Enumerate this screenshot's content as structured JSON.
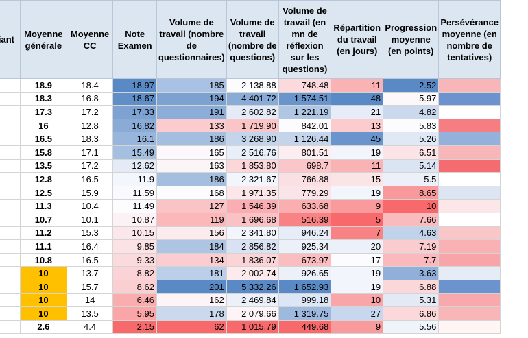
{
  "table": {
    "headers": [
      "Étudiant",
      "Moyenne générale",
      "Moyenne CC",
      "Note Examen",
      "Volume de travail (nombre de questionnaires)",
      "Volume de travail (nombre de questions)",
      "Volume de travail (en mn de réflexion sur les questions)",
      "Répartition du travail (en jours)",
      "Progression moyenne (en points)",
      "Persévérance moyenne (en nombre de tentatives)"
    ],
    "rows": [
      {
        "avg": "18.9",
        "cc": "18.4",
        "exam": "18.97",
        "quest": "185",
        "nq": "2 138.88",
        "mn": "748.48",
        "days": "11",
        "prog": "2.52"
      },
      {
        "avg": "18.3",
        "cc": "16.8",
        "exam": "18.67",
        "quest": "194",
        "nq": "4 401.72",
        "mn": "1 574.51",
        "days": "48",
        "prog": "5.97"
      },
      {
        "avg": "17.3",
        "cc": "17.2",
        "exam": "17.33",
        "quest": "191",
        "nq": "2 602.82",
        "mn": "1 221.19",
        "days": "21",
        "prog": "4.82"
      },
      {
        "avg": "16",
        "cc": "12.8",
        "exam": "16.82",
        "quest": "133",
        "nq": "1 719.90",
        "mn": "842.01",
        "days": "13",
        "prog": "5.83"
      },
      {
        "avg": "16.5",
        "cc": "18.3",
        "exam": "16.1",
        "quest": "186",
        "nq": "3 268.90",
        "mn": "1 126.44",
        "days": "45",
        "prog": "5.26"
      },
      {
        "avg": "15.8",
        "cc": "17.1",
        "exam": "15.49",
        "quest": "165",
        "nq": "2 516.76",
        "mn": "801.51",
        "days": "19",
        "prog": "6.51"
      },
      {
        "avg": "13.5",
        "cc": "17.2",
        "exam": "12.62",
        "quest": "163",
        "nq": "1 853.80",
        "mn": "698.7",
        "days": "11",
        "prog": "5.14"
      },
      {
        "avg": "12.8",
        "cc": "16.5",
        "exam": "11.9",
        "quest": "186",
        "nq": "2 321.67",
        "mn": "766.88",
        "days": "15",
        "prog": "5.5"
      },
      {
        "avg": "12.5",
        "cc": "15.9",
        "exam": "11.59",
        "quest": "168",
        "nq": "1 971.35",
        "mn": "779.29",
        "days": "19",
        "prog": "8.65"
      },
      {
        "avg": "11.3",
        "cc": "10.4",
        "exam": "11.49",
        "quest": "127",
        "nq": "1 546.39",
        "mn": "633.68",
        "days": "9",
        "prog": "10"
      },
      {
        "avg": "10.7",
        "cc": "10.1",
        "exam": "10.87",
        "quest": "119",
        "nq": "1 696.68",
        "mn": "516.39",
        "days": "5",
        "prog": "7.66"
      },
      {
        "avg": "11.2",
        "cc": "15.3",
        "exam": "10.15",
        "quest": "156",
        "nq": "2 341.80",
        "mn": "946.24",
        "days": "7",
        "prog": "4.63"
      },
      {
        "avg": "11.1",
        "cc": "16.4",
        "exam": "9.85",
        "quest": "184",
        "nq": "2 856.82",
        "mn": "925.34",
        "days": "20",
        "prog": "7.19"
      },
      {
        "avg": "10.8",
        "cc": "16.5",
        "exam": "9.33",
        "quest": "134",
        "nq": "1 836.07",
        "mn": "673.97",
        "days": "17",
        "prog": "7.7"
      },
      {
        "avg": "10",
        "cc": "13.7",
        "exam": "8.82",
        "quest": "181",
        "nq": "2 002.74",
        "mn": "926.65",
        "days": "19",
        "prog": "3.63",
        "highlight": true
      },
      {
        "avg": "10",
        "cc": "15.7",
        "exam": "8.62",
        "quest": "201",
        "nq": "5 332.26",
        "mn": "1 652.93",
        "days": "19",
        "prog": "6.88",
        "highlight": true
      },
      {
        "avg": "10",
        "cc": "14",
        "exam": "6.46",
        "quest": "162",
        "nq": "2 469.84",
        "mn": "999.18",
        "days": "10",
        "prog": "5.31",
        "highlight": true
      },
      {
        "avg": "10",
        "cc": "13.5",
        "exam": "5.95",
        "quest": "178",
        "nq": "2 079.66",
        "mn": "1 319.75",
        "days": "27",
        "prog": "6.86",
        "highlight": true
      },
      {
        "avg": "2.6",
        "cc": "4.4",
        "exam": "2.15",
        "quest": "62",
        "nq": "1 015.79",
        "mn": "449.68",
        "days": "9",
        "prog": "5.56"
      }
    ],
    "persev_fill": [
      "#f9b6b9",
      "#6d93ce",
      "#ffffff",
      "#f67d82",
      "#94b1db",
      "#f9b6b9",
      "#f46b70",
      "#ffffff",
      "#dde5f3",
      "#fde6e7",
      "#ffffff",
      "#fbc6c8",
      "#f9b1b4",
      "#f8a5a9",
      "#e6ecf6",
      "#6d93ce",
      "#f8a9ad",
      "#f9b6b9",
      "#fff5f5"
    ]
  },
  "colors": {
    "header_bg": "#dce6f1",
    "pass_highlight": "#ffc000",
    "scale_low": "#f8696b",
    "scale_mid": "#fcfcff",
    "scale_high": "#5a8ac6"
  }
}
